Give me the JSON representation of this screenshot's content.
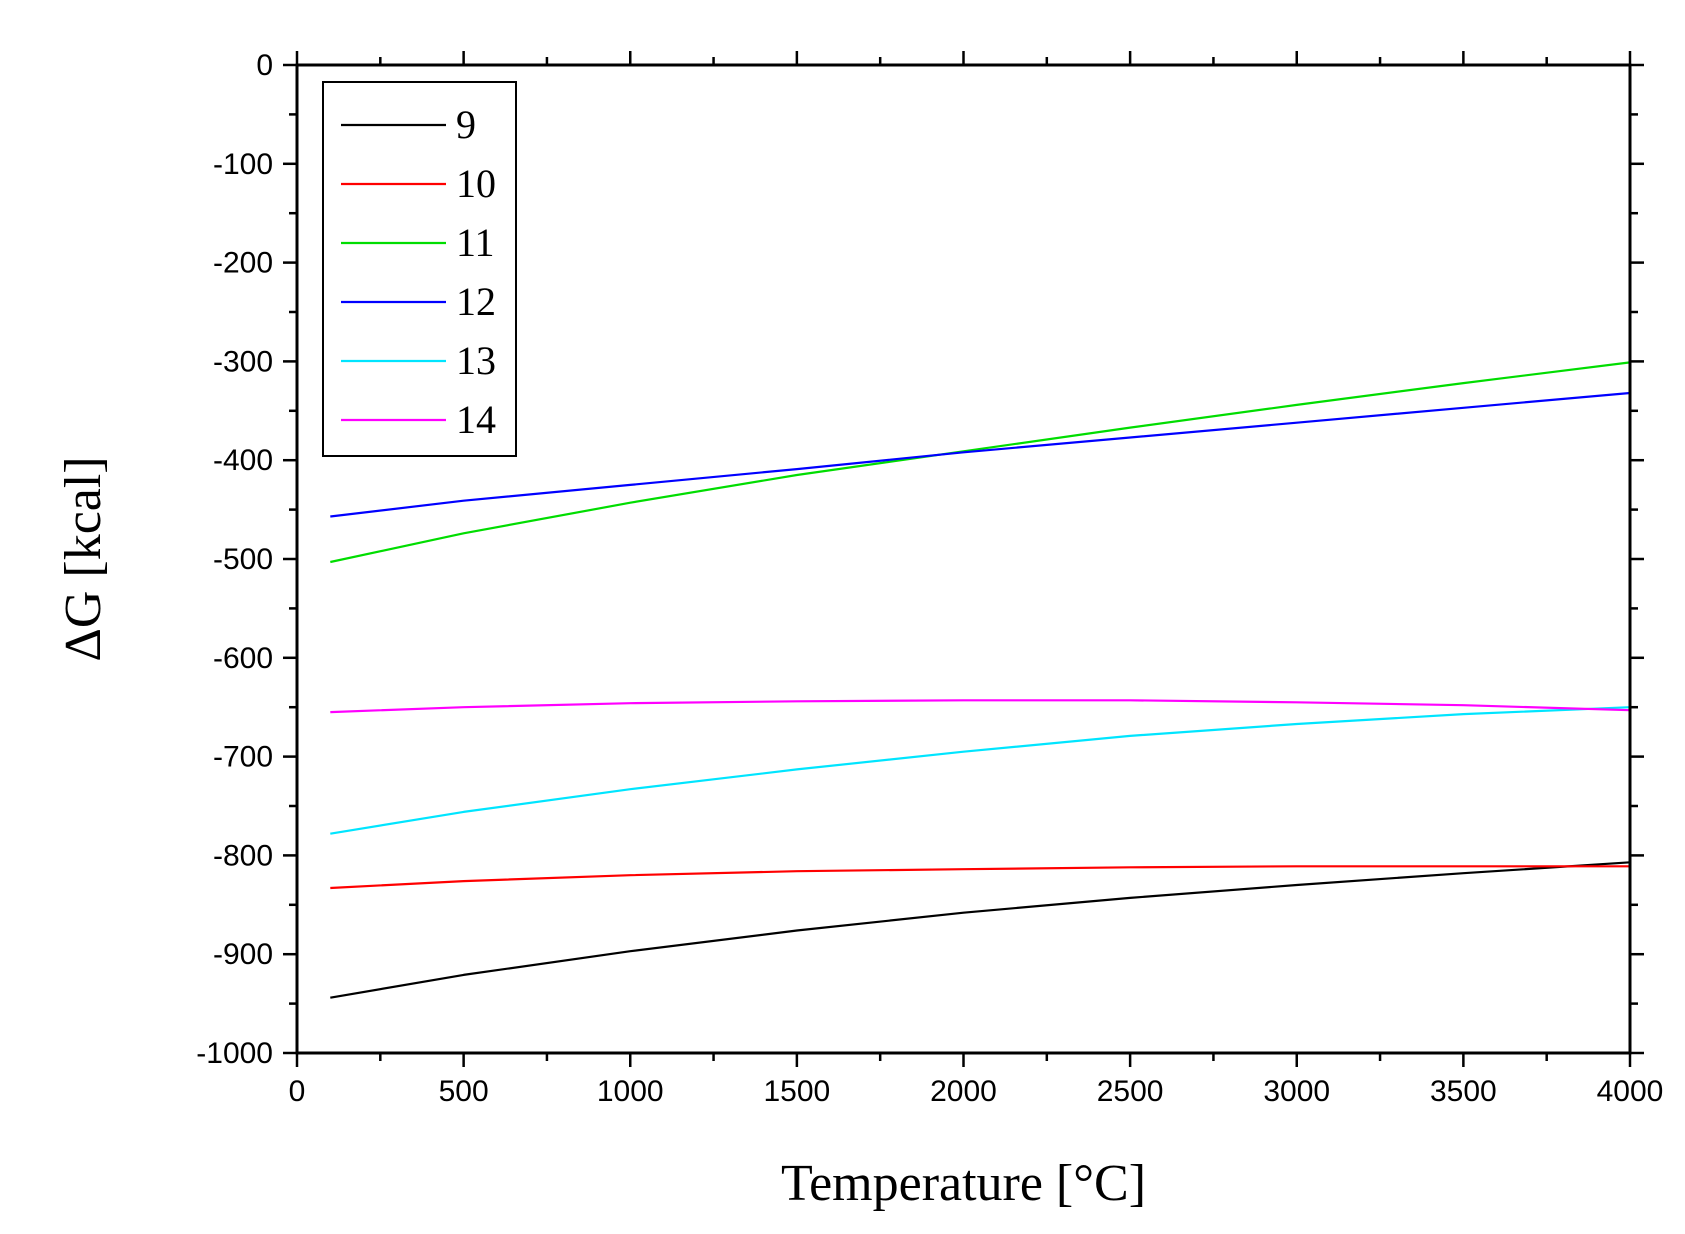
{
  "chart_data": {
    "type": "line",
    "xlabel": "Temperature [°C]",
    "ylabel": "ΔG [kcal]",
    "xlim": [
      0,
      4000
    ],
    "ylim": [
      -1000,
      0
    ],
    "xticks": [
      0,
      500,
      1000,
      1500,
      2000,
      2500,
      3000,
      3500,
      4000
    ],
    "yticks": [
      0,
      -100,
      -200,
      -300,
      -400,
      -500,
      -600,
      -700,
      -800,
      -900,
      -1000
    ],
    "grid": false,
    "legend_position": "top-left",
    "series": [
      {
        "name": "9",
        "color": "#000000",
        "x": [
          100,
          500,
          1000,
          1500,
          2000,
          2500,
          3000,
          3500,
          4000
        ],
        "y": [
          -944,
          -921,
          -897,
          -876,
          -858,
          -843,
          -830,
          -818,
          -807
        ]
      },
      {
        "name": "10",
        "color": "#ff0000",
        "x": [
          100,
          500,
          1000,
          1500,
          2000,
          2500,
          3000,
          3500,
          4000
        ],
        "y": [
          -833,
          -826,
          -820,
          -816,
          -814,
          -812,
          -811,
          -811,
          -811
        ]
      },
      {
        "name": "11",
        "color": "#00dd00",
        "x": [
          100,
          500,
          1000,
          1500,
          2000,
          2500,
          3000,
          3500,
          4000
        ],
        "y": [
          -503,
          -474,
          -443,
          -415,
          -391,
          -367,
          -344,
          -322,
          -301
        ]
      },
      {
        "name": "12",
        "color": "#0000ff",
        "x": [
          100,
          500,
          1000,
          1500,
          2000,
          2500,
          3000,
          3500,
          4000
        ],
        "y": [
          -457,
          -441,
          -425,
          -409,
          -392,
          -377,
          -362,
          -347,
          -332
        ]
      },
      {
        "name": "13",
        "color": "#00e5ff",
        "x": [
          100,
          500,
          1000,
          1500,
          2000,
          2500,
          3000,
          3500,
          4000
        ],
        "y": [
          -778,
          -756,
          -733,
          -713,
          -695,
          -679,
          -667,
          -657,
          -650
        ]
      },
      {
        "name": "14",
        "color": "#ff00ff",
        "x": [
          100,
          500,
          1000,
          1500,
          2000,
          2500,
          3000,
          3500,
          4000
        ],
        "y": [
          -655,
          -650,
          -646,
          -644,
          -643,
          -643,
          -645,
          -648,
          -653
        ]
      }
    ]
  }
}
